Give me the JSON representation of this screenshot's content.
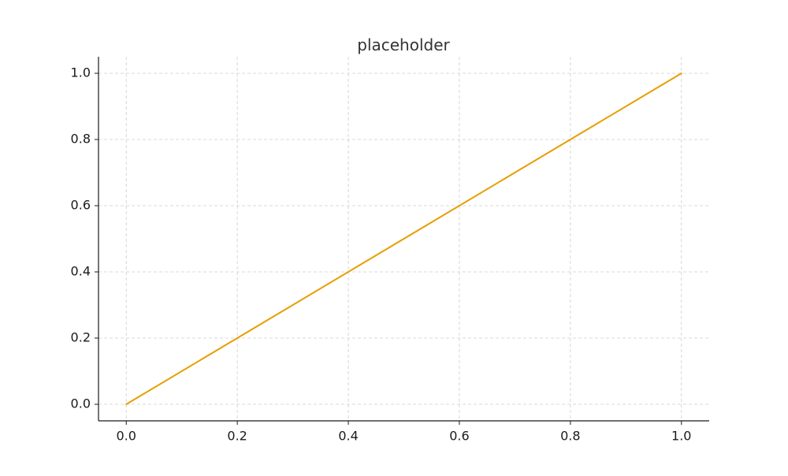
{
  "chart_data": {
    "type": "line",
    "title": "placeholder",
    "xlabel": "",
    "ylabel": "",
    "xlim": [
      -0.05,
      1.05
    ],
    "ylim": [
      -0.05,
      1.05
    ],
    "x_ticks": [
      0.0,
      0.2,
      0.4,
      0.6,
      0.8,
      1.0
    ],
    "x_tick_labels": [
      "0.0",
      "0.2",
      "0.4",
      "0.6",
      "0.8",
      "1.0"
    ],
    "y_ticks": [
      0.0,
      0.2,
      0.4,
      0.6,
      0.8,
      1.0
    ],
    "y_tick_labels": [
      "0.0",
      "0.2",
      "0.4",
      "0.6",
      "0.8",
      "1.0"
    ],
    "grid": true,
    "series": [
      {
        "color": "#e69f00",
        "points": [
          {
            "x": 0.0,
            "y": 0.0
          },
          {
            "x": 1.0,
            "y": 1.0
          }
        ]
      }
    ]
  }
}
